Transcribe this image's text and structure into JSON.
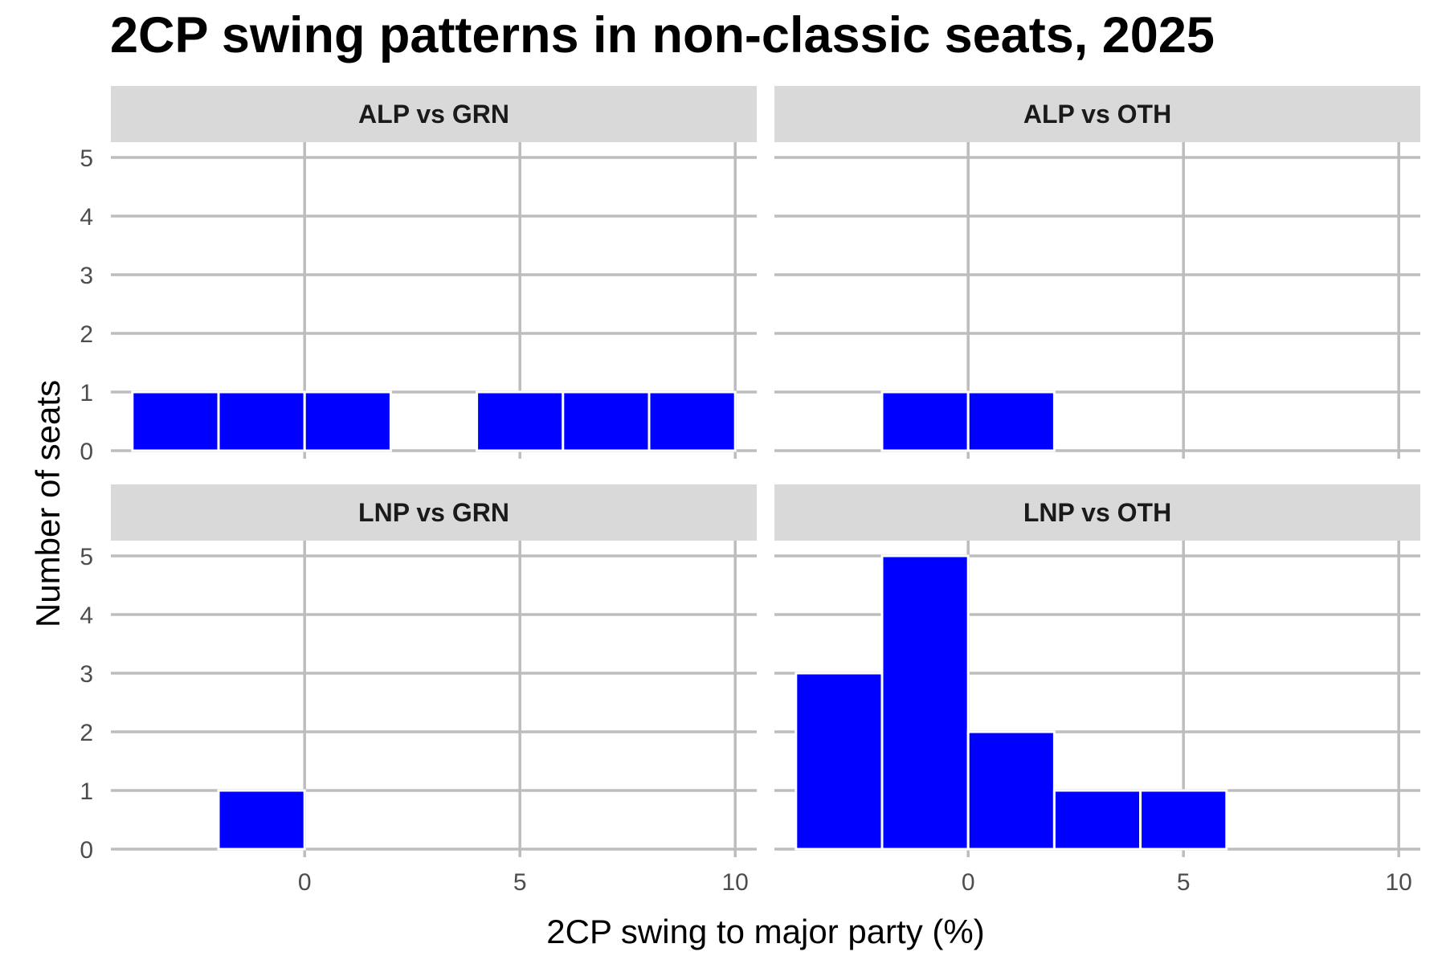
{
  "chart_data": {
    "type": "bar",
    "title": "2CP swing patterns in non-classic seats, 2025",
    "xlabel": "2CP swing to major party (%)",
    "ylabel": "Number of seats",
    "bin_width": 2,
    "xlim": [
      -4.5,
      10.5
    ],
    "ylim": [
      0,
      5
    ],
    "x_ticks": [
      0,
      5,
      10
    ],
    "y_ticks": [
      0,
      1,
      2,
      3,
      4,
      5
    ],
    "grid": true,
    "bar_color": "#0000ff",
    "panels": [
      {
        "label": "ALP vs GRN",
        "bin_starts": [
          -4,
          -2,
          0,
          2,
          4,
          6,
          8
        ],
        "counts": [
          1,
          1,
          1,
          0,
          1,
          1,
          1
        ]
      },
      {
        "label": "ALP vs OTH",
        "bin_starts": [
          -4,
          -2,
          0,
          2,
          4,
          6,
          8
        ],
        "counts": [
          0,
          1,
          1,
          0,
          0,
          0,
          0
        ]
      },
      {
        "label": "LNP vs GRN",
        "bin_starts": [
          -4,
          -2,
          0,
          2,
          4,
          6,
          8
        ],
        "counts": [
          0,
          1,
          0,
          0,
          0,
          0,
          0
        ]
      },
      {
        "label": "LNP vs OTH",
        "bin_starts": [
          -4,
          -2,
          0,
          2,
          4,
          6,
          8
        ],
        "counts": [
          3,
          5,
          2,
          1,
          1,
          0,
          0
        ]
      }
    ]
  }
}
